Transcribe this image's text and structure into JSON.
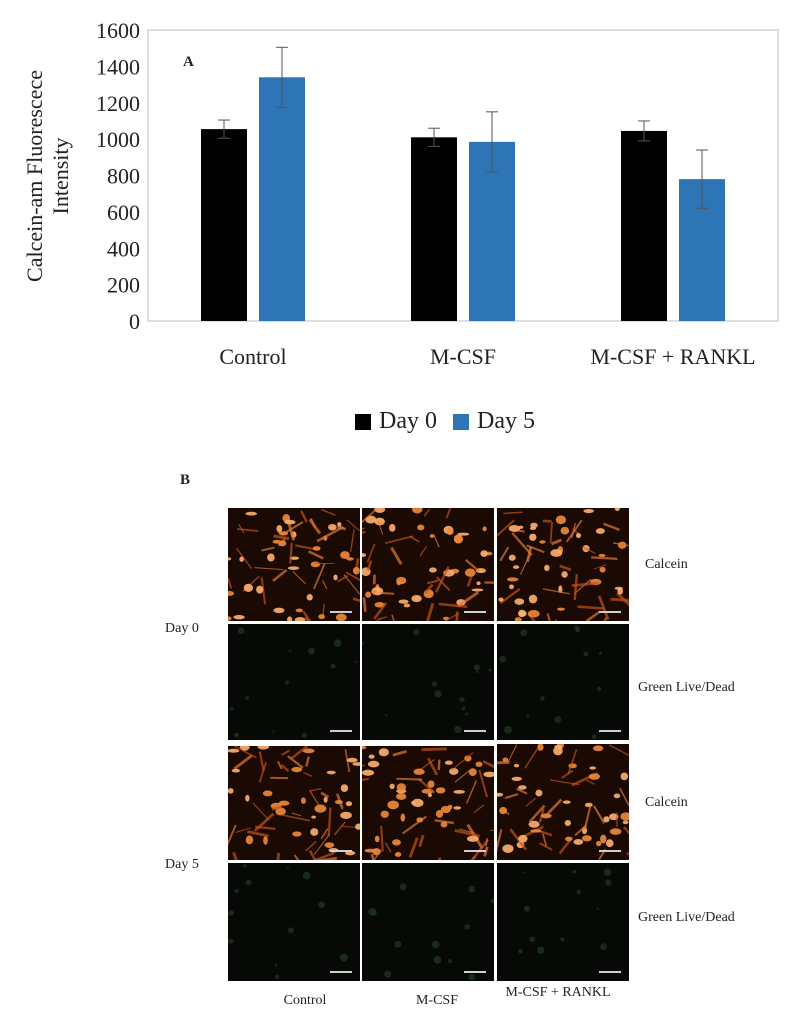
{
  "chart_data": {
    "type": "bar",
    "panel_label": "A",
    "title": "",
    "xlabel": "",
    "ylabel_line1": "Calcein-am Fluorescece",
    "ylabel_line2": "Intensity",
    "ylim": [
      0,
      1600
    ],
    "yticks": [
      0,
      200,
      400,
      600,
      800,
      1000,
      1200,
      1400,
      1600
    ],
    "categories": [
      "Control",
      "M-CSF",
      "M-CSF + RANKL"
    ],
    "series": [
      {
        "name": "Day 0",
        "color": "#000000",
        "values": [
          1055,
          1010,
          1045
        ],
        "errors": [
          50,
          50,
          55
        ]
      },
      {
        "name": "Day 5",
        "color": "#2e75b6",
        "values": [
          1340,
          985,
          780
        ],
        "errors": [
          165,
          165,
          160
        ]
      }
    ],
    "grid": false,
    "legend_position": "bottom"
  },
  "panel_b": {
    "label": "B",
    "rows": [
      {
        "day": "Day 0",
        "stains": [
          "Calcein",
          "Green Live/Dead"
        ]
      },
      {
        "day": "Day 5",
        "stains": [
          "Calcein",
          "Green Live/Dead"
        ]
      }
    ],
    "columns": [
      "Control",
      "M-CSF",
      "M-CSF + RANKL"
    ]
  }
}
